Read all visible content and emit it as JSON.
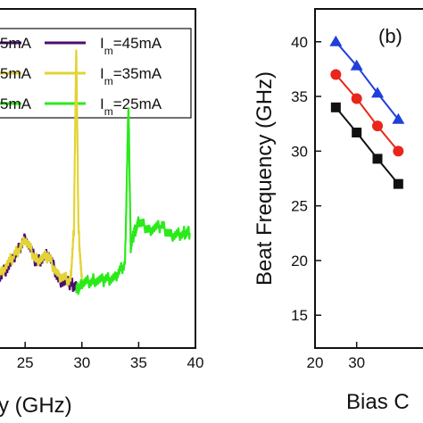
{
  "chart_data": [
    {
      "panel": "a",
      "type": "line",
      "xlim": [
        22,
        40
      ],
      "x_ticks": [
        25,
        30,
        35,
        40
      ],
      "x_tick_labels": [
        "25",
        "30",
        "35",
        "40"
      ],
      "xlabel": "y (GHz)",
      "ylabel": "",
      "grid": false,
      "legend": {
        "placement": "top",
        "entries": [
          {
            "label": "5mA",
            "color": "#4b0f6b"
          },
          {
            "label": "I_m=45mA",
            "color": "#4b0f6b"
          },
          {
            "label": "5mA",
            "color": "#e3d334"
          },
          {
            "label": "I_m=35mA",
            "color": "#e3d334"
          },
          {
            "label": "5mA",
            "color": "#2bea1a"
          },
          {
            "label": "I_m=25mA",
            "color": "#2bea1a"
          }
        ]
      },
      "series": [
        {
          "name": "I_m=45mA",
          "color": "#4b0f6b",
          "x": [
            22,
            23,
            24,
            25,
            26,
            27,
            28,
            29,
            29.5
          ],
          "y": [
            0.2,
            0.22,
            0.26,
            0.33,
            0.25,
            0.28,
            0.2,
            0.19,
            0.18
          ]
        },
        {
          "name": "I_m=35mA",
          "color": "#e3d334",
          "x": [
            22,
            23,
            24,
            25,
            26,
            27,
            28,
            29,
            29.3,
            29.5,
            29.7,
            30
          ],
          "y": [
            0.21,
            0.23,
            0.27,
            0.32,
            0.26,
            0.27,
            0.21,
            0.2,
            0.35,
            0.9,
            0.35,
            0.19
          ]
        },
        {
          "name": "I_m=25mA",
          "color": "#2bea1a",
          "x": [
            29.5,
            30,
            31,
            32,
            33,
            33.8,
            34.1,
            34.3,
            34.6,
            35,
            36,
            37,
            38,
            39,
            39.5
          ],
          "y": [
            0.17,
            0.19,
            0.2,
            0.2,
            0.21,
            0.25,
            0.72,
            0.3,
            0.34,
            0.37,
            0.35,
            0.36,
            0.33,
            0.34,
            0.34
          ]
        }
      ]
    },
    {
      "panel": "b",
      "panel_label": "(b)",
      "type": "line",
      "xlim": [
        20,
        50
      ],
      "ylim": [
        12,
        43
      ],
      "x_ticks": [
        20,
        30
      ],
      "x_tick_labels": [
        "20",
        "30"
      ],
      "y_ticks": [
        15,
        20,
        25,
        30,
        35,
        40
      ],
      "y_tick_labels": [
        "15",
        "20",
        "25",
        "30",
        "35",
        "40"
      ],
      "xlabel": "Bias C",
      "ylabel": "Beat Frequency (GHz)",
      "grid": false,
      "series": [
        {
          "marker": "triangle",
          "color": "#1f3fdb",
          "x": [
            25,
            30,
            35,
            40
          ],
          "y": [
            40.0,
            37.8,
            35.3,
            32.9
          ]
        },
        {
          "marker": "circle",
          "color": "#e8261b",
          "x": [
            25,
            30,
            35,
            40
          ],
          "y": [
            37.0,
            34.8,
            32.3,
            30.0
          ]
        },
        {
          "marker": "square",
          "color": "#111111",
          "x": [
            25,
            30,
            35,
            40
          ],
          "y": [
            34.0,
            31.7,
            29.3,
            27.0
          ]
        }
      ]
    }
  ]
}
